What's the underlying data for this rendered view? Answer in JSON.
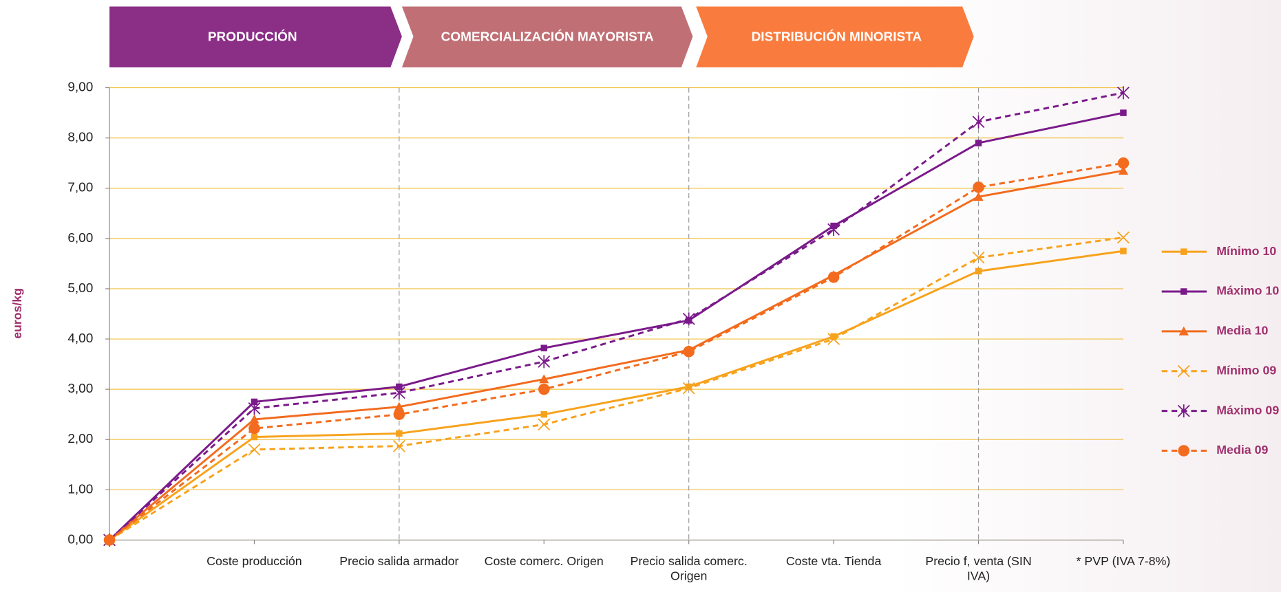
{
  "chart_data": {
    "type": "line",
    "stages": [
      "PRODUCCIÓN",
      "COMERCIALIZACIÓN MAYORISTA",
      "DISTRIBUCIÓN MINORISTA"
    ],
    "y_label": "euros/kg",
    "categories": [
      null,
      "Coste producción",
      "Precio salida armador",
      "Coste comerc. Origen",
      "Precio salida comerc. Origen",
      "Coste vta. Tienda",
      "Precio f, venta (SIN IVA)",
      "* PVP (IVA 7-8%)"
    ],
    "ylim": [
      0,
      9
    ],
    "yticks": [
      {
        "value": 0,
        "label": "0,00"
      },
      {
        "value": 1,
        "label": "1,00"
      },
      {
        "value": 2,
        "label": "2,00"
      },
      {
        "value": 3,
        "label": "3,00"
      },
      {
        "value": 4,
        "label": "4,00"
      },
      {
        "value": 5,
        "label": "5,00"
      },
      {
        "value": 6,
        "label": "6,00"
      },
      {
        "value": 7,
        "label": "7,00"
      },
      {
        "value": 8,
        "label": "8,00"
      },
      {
        "value": 9,
        "label": "9,00"
      }
    ],
    "grid": true,
    "legend": "right",
    "series": [
      {
        "name": "Mínimo 10",
        "color": "#f7a21c",
        "marker": "square",
        "dashed": false,
        "values": [
          0,
          2.05,
          2.12,
          2.5,
          3.05,
          4.05,
          5.35,
          5.75
        ]
      },
      {
        "name": "Máximo 10",
        "color": "#7a1a8a",
        "marker": "square",
        "dashed": false,
        "values": [
          0,
          2.75,
          3.05,
          3.82,
          4.37,
          6.25,
          7.9,
          8.5
        ]
      },
      {
        "name": "Media 10",
        "color": "#f26b1e",
        "marker": "triangle",
        "dashed": false,
        "values": [
          0,
          2.4,
          2.65,
          3.2,
          3.78,
          5.27,
          6.83,
          7.35
        ]
      },
      {
        "name": "Mínimo 09",
        "color": "#f7a21c",
        "marker": "x",
        "dashed": true,
        "values": [
          0,
          1.8,
          1.87,
          2.3,
          3.02,
          4.0,
          5.62,
          6.02
        ]
      },
      {
        "name": "Máximo 09",
        "color": "#7a1a8a",
        "marker": "star",
        "dashed": true,
        "values": [
          0,
          2.62,
          2.93,
          3.55,
          4.4,
          6.18,
          8.32,
          8.9
        ]
      },
      {
        "name": "Media 09",
        "color": "#f26b1e",
        "marker": "circle",
        "dashed": true,
        "values": [
          0,
          2.22,
          2.5,
          3.0,
          3.75,
          5.23,
          7.02,
          7.5
        ]
      }
    ]
  }
}
